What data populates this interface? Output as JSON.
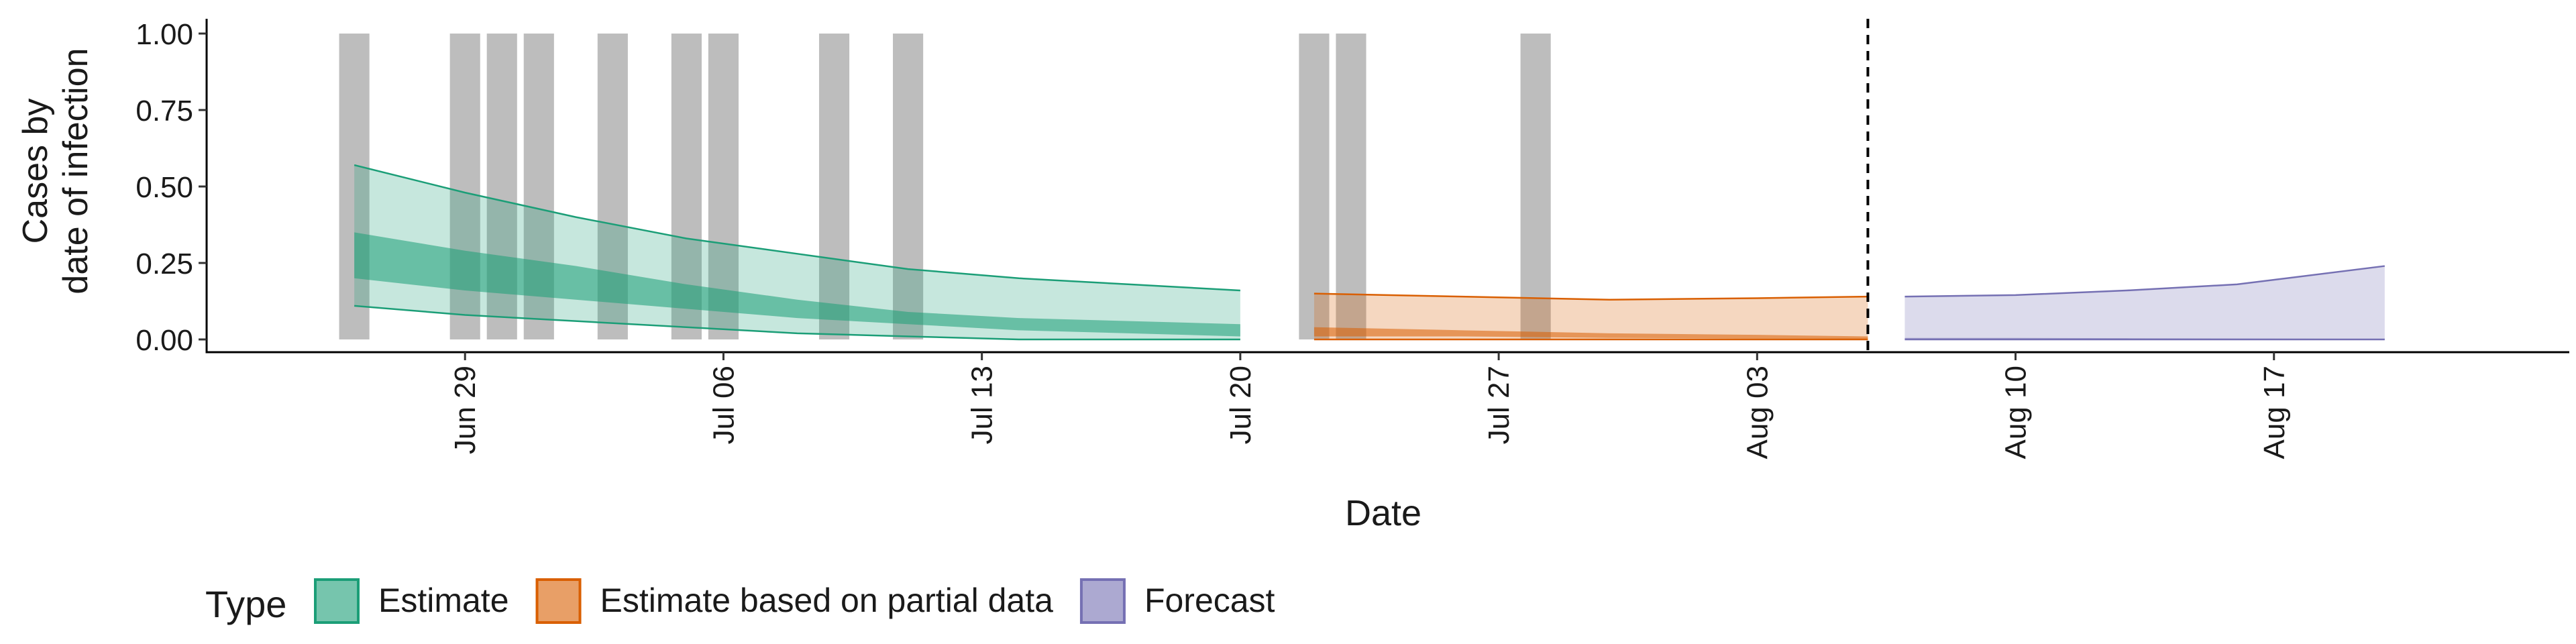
{
  "chart_data": {
    "type": "area",
    "xlabel": "Date",
    "ylabel": [
      "Cases by",
      "date of infection"
    ],
    "ylim": [
      0,
      1.0
    ],
    "y_ticks": [
      0.0,
      0.25,
      0.5,
      0.75,
      1.0
    ],
    "y_tick_labels": [
      "0.00",
      "0.25",
      "0.50",
      "0.75",
      "1.00"
    ],
    "x_ticks": [
      "2020-06-29",
      "2020-07-06",
      "2020-07-13",
      "2020-07-20",
      "2020-07-27",
      "2020-08-03",
      "2020-08-10",
      "2020-08-17"
    ],
    "x_tick_labels": [
      "Jun 29",
      "Jul 06",
      "Jul 13",
      "Jul 20",
      "Jul 27",
      "Aug 03",
      "Aug 10",
      "Aug 17"
    ],
    "xlim": [
      "2020-06-22",
      "2020-08-25"
    ],
    "forecast_cutoff": "2020-08-06",
    "grid": false,
    "legend": {
      "title": "Type",
      "position": "bottom-left",
      "entries": [
        {
          "label": "Estimate",
          "fill": "#1b9e77",
          "stroke": "#1b9e77"
        },
        {
          "label": "Estimate based on partial data",
          "fill": "#d95f02",
          "stroke": "#d95f02"
        },
        {
          "label": "Forecast",
          "fill": "#7570b3",
          "stroke": "#7570b3"
        }
      ]
    },
    "observed_cases": [
      {
        "date": "2020-06-26",
        "value": 1
      },
      {
        "date": "2020-06-29",
        "value": 1
      },
      {
        "date": "2020-06-30",
        "value": 1
      },
      {
        "date": "2020-07-01",
        "value": 1
      },
      {
        "date": "2020-07-03",
        "value": 1
      },
      {
        "date": "2020-07-05",
        "value": 1
      },
      {
        "date": "2020-07-06",
        "value": 1
      },
      {
        "date": "2020-07-09",
        "value": 1
      },
      {
        "date": "2020-07-11",
        "value": 1
      },
      {
        "date": "2020-07-22",
        "value": 1
      },
      {
        "date": "2020-07-23",
        "value": 1
      },
      {
        "date": "2020-07-28",
        "value": 1
      }
    ],
    "series": [
      {
        "name": "Estimate",
        "color": "#1b9e77",
        "x": [
          "2020-06-26",
          "2020-06-29",
          "2020-07-02",
          "2020-07-05",
          "2020-07-08",
          "2020-07-11",
          "2020-07-14",
          "2020-07-17",
          "2020-07-20"
        ],
        "outer_lower": [
          0.11,
          0.08,
          0.06,
          0.04,
          0.02,
          0.01,
          0.0,
          0.0,
          0.0
        ],
        "outer_upper": [
          0.57,
          0.48,
          0.4,
          0.33,
          0.28,
          0.23,
          0.2,
          0.18,
          0.16
        ],
        "inner_lower": [
          0.2,
          0.16,
          0.13,
          0.1,
          0.07,
          0.05,
          0.03,
          0.02,
          0.01
        ],
        "inner_upper": [
          0.35,
          0.29,
          0.24,
          0.18,
          0.13,
          0.09,
          0.07,
          0.06,
          0.05
        ]
      },
      {
        "name": "Estimate based on partial data",
        "color": "#d95f02",
        "x": [
          "2020-07-22",
          "2020-07-26",
          "2020-07-30",
          "2020-08-03",
          "2020-08-06"
        ],
        "outer_lower": [
          0.0,
          0.0,
          0.0,
          0.0,
          0.0
        ],
        "outer_upper": [
          0.15,
          0.14,
          0.13,
          0.135,
          0.14
        ],
        "inner_lower": [
          0.01,
          0.01,
          0.005,
          0.003,
          0.002
        ],
        "inner_upper": [
          0.04,
          0.03,
          0.02,
          0.015,
          0.01
        ]
      },
      {
        "name": "Forecast",
        "color": "#7570b3",
        "x": [
          "2020-08-07",
          "2020-08-10",
          "2020-08-13",
          "2020-08-16",
          "2020-08-20"
        ],
        "outer_lower": [
          0.0,
          0.0,
          0.0,
          0.0,
          0.0
        ],
        "outer_upper": [
          0.14,
          0.145,
          0.16,
          0.18,
          0.24
        ],
        "inner_lower": [
          0.0,
          0.0,
          0.0,
          0.0,
          0.0
        ],
        "inner_upper": [
          0.005,
          0.005,
          0.004,
          0.003,
          0.002
        ]
      }
    ]
  }
}
